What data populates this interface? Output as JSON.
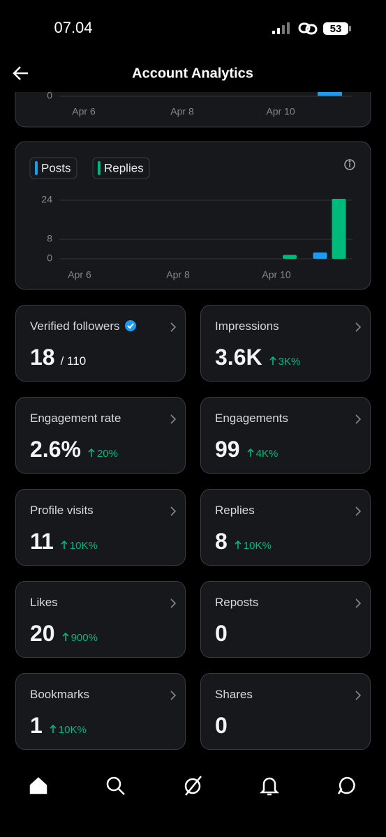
{
  "status_bar": {
    "time": "07.04",
    "battery": "53"
  },
  "header": {
    "title": "Account Analytics"
  },
  "chart_data": [
    {
      "type": "bar",
      "categories": [
        "Apr 6",
        null,
        "Apr 8",
        null,
        "Apr 10",
        null
      ],
      "yticks": [
        0
      ]
    },
    {
      "type": "bar",
      "categories": [
        "Apr 6",
        null,
        "Apr 8",
        null,
        "Apr 10",
        null
      ],
      "series": [
        {
          "name": "Posts",
          "color": "#1d9bf0",
          "values": [
            0,
            0,
            0,
            0,
            0,
            2
          ]
        },
        {
          "name": "Replies",
          "color": "#00ba7c",
          "values": [
            0,
            0,
            0,
            0,
            1,
            24
          ]
        }
      ],
      "ylim": [
        0,
        24
      ],
      "yticks": [
        0,
        8,
        24
      ],
      "grid": true
    }
  ],
  "metrics": [
    {
      "label": "Verified followers",
      "value": "18",
      "total": "/ 110",
      "verified": true
    },
    {
      "label": "Impressions",
      "value": "3.6K",
      "change": "3K%"
    },
    {
      "label": "Engagement rate",
      "value": "2.6%",
      "change": "20%"
    },
    {
      "label": "Engagements",
      "value": "99",
      "change": "4K%"
    },
    {
      "label": "Profile visits",
      "value": "11",
      "change": "10K%"
    },
    {
      "label": "Replies",
      "value": "8",
      "change": "10K%"
    },
    {
      "label": "Likes",
      "value": "20",
      "change": "900%"
    },
    {
      "label": "Reposts",
      "value": "0"
    },
    {
      "label": "Bookmarks",
      "value": "1",
      "change": "10K%"
    },
    {
      "label": "Shares",
      "value": "0"
    }
  ]
}
